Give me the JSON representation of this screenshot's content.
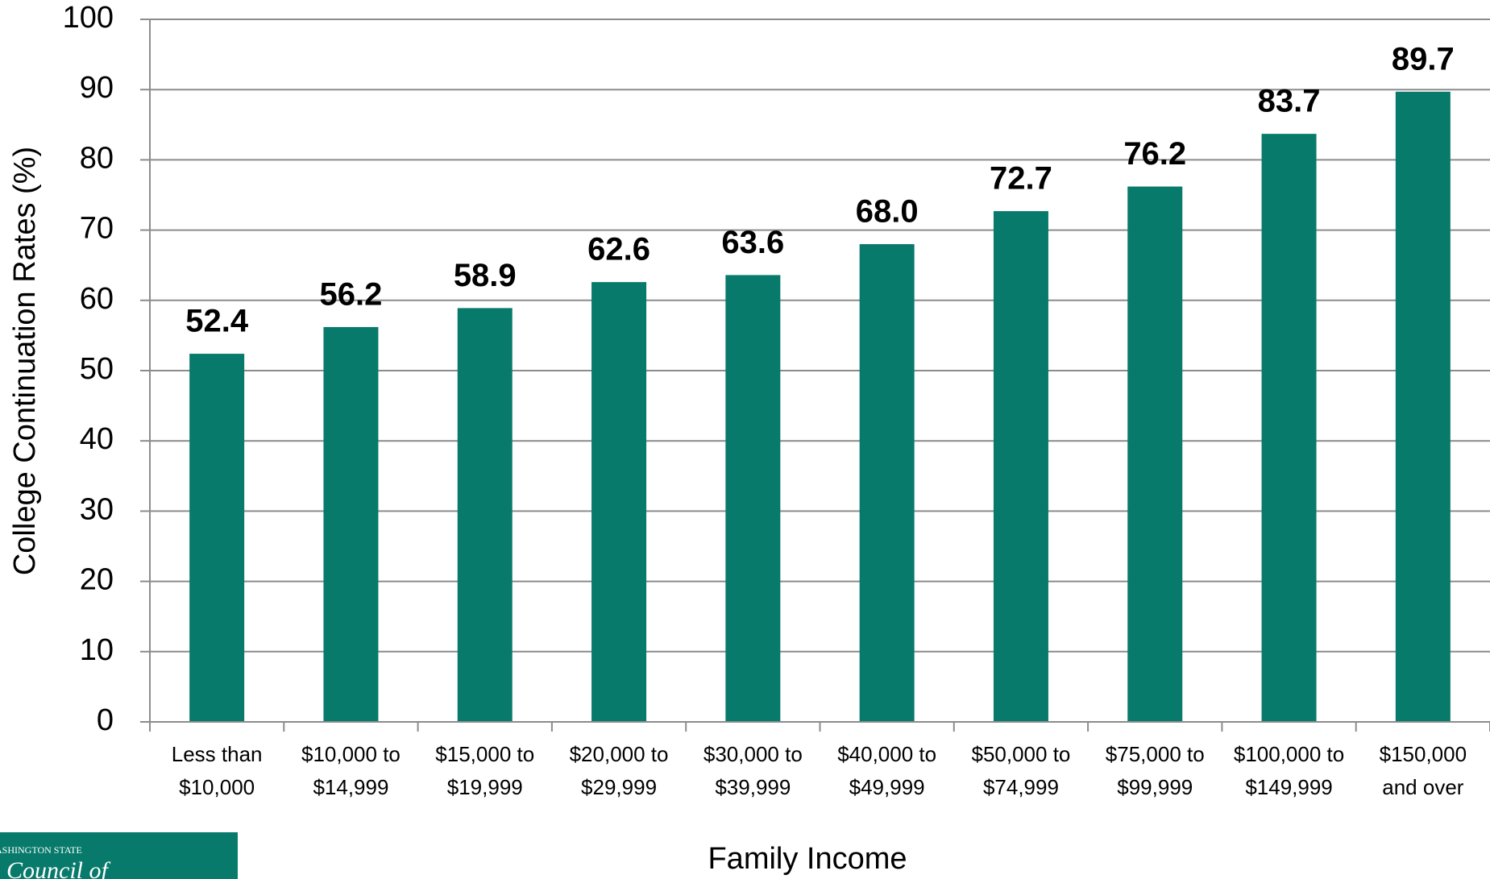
{
  "chart_data": {
    "type": "bar",
    "x_label": "Family Income",
    "y_label": "College Continuation Rates (%)",
    "categories": [
      "Less than $10,000",
      "$10,000 to $14,999",
      "$15,000 to $19,999",
      "$20,000 to $29,999",
      "$30,000 to $39,999",
      "$40,000 to $49,999",
      "$50,000 to $74,999",
      "$75,000 to $99,999",
      "$100,000 to $149,999",
      "$150,000 and over"
    ],
    "values": [
      52.4,
      56.2,
      58.9,
      62.6,
      63.6,
      68.0,
      72.7,
      76.2,
      83.7,
      89.7
    ],
    "value_labels": [
      "52.4",
      "56.2",
      "58.9",
      "62.6",
      "63.6",
      "68.0",
      "72.7",
      "76.2",
      "83.7",
      "89.7"
    ],
    "color": "#077a6b",
    "ylim": [
      0,
      100
    ],
    "yticks": [
      0,
      10,
      20,
      30,
      40,
      50,
      60,
      70,
      80,
      90,
      100
    ],
    "grid": true,
    "logo_text": [
      "ASHINGTON STATE",
      "Council of"
    ]
  }
}
